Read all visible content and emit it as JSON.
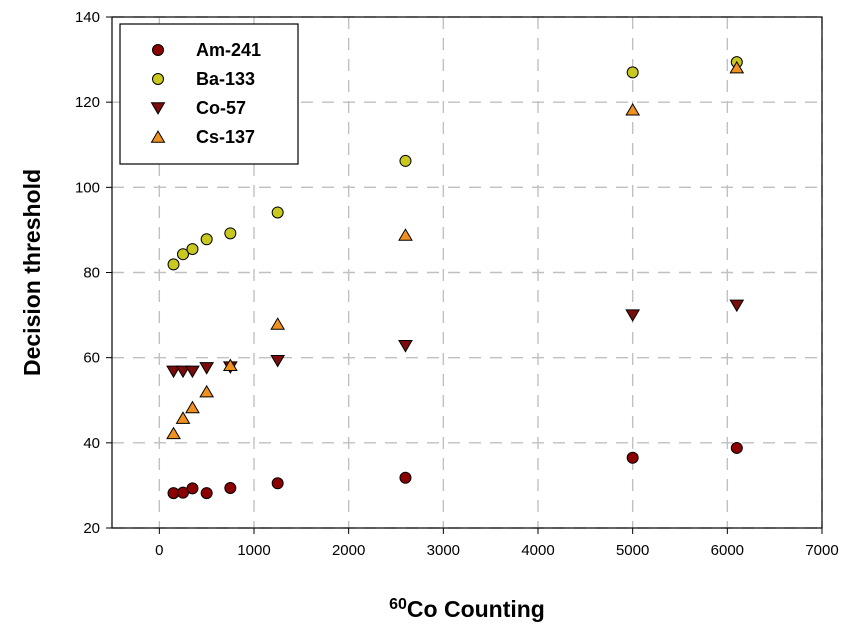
{
  "chart_data": {
    "type": "scatter",
    "xlabel_superscript": "60",
    "xlabel": "Co Counting",
    "ylabel": "Decision threshold",
    "xlim": [
      -500,
      7000
    ],
    "ylim": [
      20,
      140
    ],
    "x_ticks": [
      0,
      1000,
      2000,
      3000,
      4000,
      5000,
      6000,
      7000
    ],
    "y_ticks": [
      20,
      40,
      60,
      80,
      100,
      120,
      140
    ],
    "grid": true,
    "grid_style": "dashed",
    "legend_position": "top-left",
    "series": [
      {
        "name": "Am-241",
        "marker": "circle",
        "color": "#8b0000",
        "x": [
          150,
          250,
          350,
          500,
          750,
          1250,
          2600,
          5000,
          6100
        ],
        "y": [
          28.2,
          28.3,
          29.3,
          28.2,
          29.4,
          30.5,
          31.8,
          36.5,
          38.8
        ]
      },
      {
        "name": "Ba-133",
        "marker": "circle",
        "color": "#c8c81e",
        "x": [
          150,
          250,
          350,
          500,
          750,
          1250,
          2600,
          5000,
          6100
        ],
        "y": [
          81.9,
          84.3,
          85.5,
          87.8,
          89.2,
          94.1,
          106.2,
          127.0,
          129.4
        ]
      },
      {
        "name": "Co-57",
        "marker": "triangle-down",
        "color": "#7a0c0c",
        "x": [
          150,
          250,
          350,
          500,
          750,
          1250,
          2600,
          5000,
          6100
        ],
        "y": [
          56.8,
          56.8,
          56.8,
          57.6,
          57.8,
          59.3,
          62.8,
          70.0,
          72.3
        ]
      },
      {
        "name": "Cs-137",
        "marker": "triangle-up",
        "color": "#f0901e",
        "x": [
          150,
          250,
          350,
          500,
          750,
          1250,
          2600,
          5000,
          6100
        ],
        "y": [
          42.2,
          45.8,
          48.3,
          52.0,
          58.2,
          67.9,
          88.8,
          118.2,
          128.1
        ]
      }
    ]
  }
}
